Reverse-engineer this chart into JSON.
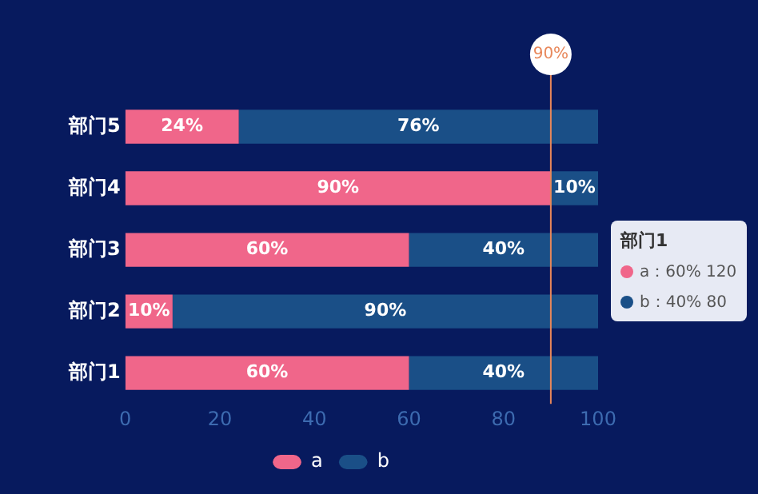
{
  "chart_data": {
    "type": "bar",
    "orientation": "horizontal",
    "stacked": true,
    "categories": [
      "部门5",
      "部门4",
      "部门3",
      "部门2",
      "部门1"
    ],
    "series": [
      {
        "name": "a",
        "color": "#f0668a",
        "values": [
          24,
          90,
          60,
          10,
          60
        ],
        "value_labels": [
          "24%",
          "90%",
          "60%",
          "10%",
          "60%"
        ]
      },
      {
        "name": "b",
        "color": "#1a4f87",
        "values": [
          76,
          10,
          40,
          90,
          40
        ],
        "value_labels": [
          "76%",
          "10%",
          "40%",
          "90%",
          "40%"
        ]
      }
    ],
    "xlim": [
      0,
      100
    ],
    "xticks": [
      0,
      20,
      40,
      60,
      80,
      100
    ],
    "grid": false,
    "legend": "bottom",
    "ref_lines": [
      {
        "axis": "x",
        "value": 90,
        "label": "90%",
        "color": "#e8875a"
      }
    ],
    "annotations": [
      "部门1",
      "a：60% 120",
      "b：40% 80"
    ]
  }
}
